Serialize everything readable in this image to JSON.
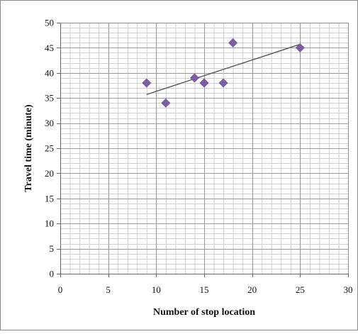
{
  "chart_data": {
    "type": "scatter",
    "title": "",
    "xlabel": "Number of stop location",
    "ylabel": "Travel time (minute)",
    "xlim": [
      0,
      30
    ],
    "ylim": [
      0,
      50
    ],
    "x_major_step": 5,
    "y_major_step": 5,
    "x_minor_step": 1,
    "y_minor_step": 1,
    "grid": true,
    "legend": "none",
    "x_ticks": [
      "0",
      "5",
      "10",
      "15",
      "20",
      "25",
      "30"
    ],
    "y_ticks": [
      "0",
      "5",
      "10",
      "15",
      "20",
      "25",
      "30",
      "35",
      "40",
      "45",
      "50"
    ],
    "series": [
      {
        "marker": "diamond",
        "color": "#7B5EA7",
        "points": [
          {
            "x": 9,
            "y": 38
          },
          {
            "x": 11,
            "y": 34
          },
          {
            "x": 14,
            "y": 39
          },
          {
            "x": 15,
            "y": 38
          },
          {
            "x": 17,
            "y": 38
          },
          {
            "x": 18,
            "y": 46
          },
          {
            "x": 25,
            "y": 45
          }
        ]
      }
    ],
    "trendline": {
      "type": "linear",
      "color": "#555555",
      "from": {
        "x": 9,
        "y": 35.7
      },
      "to": {
        "x": 25,
        "y": 45.7
      }
    },
    "gridline_color": "#9a9a9a",
    "minor_gridline_color": "#cfcfcf",
    "border_color": "#8a8a8a"
  }
}
